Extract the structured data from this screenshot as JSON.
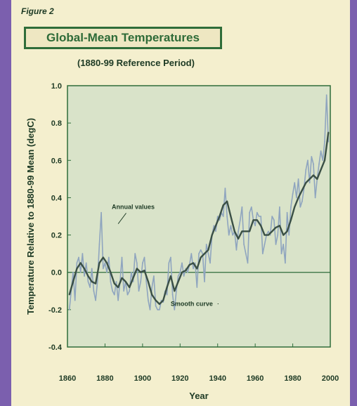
{
  "figure_label": "Figure 2",
  "chart_data": {
    "type": "line",
    "title": "Global-Mean Temperatures",
    "subtitle": "(1880-99 Reference Period)",
    "xlabel": "Year",
    "ylabel": "Temperature Relative to 1880-99 Mean (degC)",
    "xlim": [
      1860,
      2000
    ],
    "ylim": [
      -0.4,
      1.0
    ],
    "xticks": [
      1860,
      1880,
      1900,
      1920,
      1940,
      1960,
      1980,
      2000
    ],
    "yticks": [
      -0.4,
      -0.2,
      0.0,
      0.2,
      0.4,
      0.6,
      0.8,
      1.0
    ],
    "ytick_labels": [
      "-0.4",
      "-0.2",
      "0.0",
      "0.2",
      "0.4",
      "0.6",
      "0.8",
      "1.0"
    ],
    "grid": false,
    "zero_line": true,
    "annotations": [
      {
        "text": "Annual values",
        "target": "annual",
        "x": 1895,
        "y": 0.34,
        "arrow_to": [
          1887,
          0.26
        ]
      },
      {
        "text": "Smooth curve",
        "target": "smooth",
        "x": 1915,
        "y": -0.18,
        "arrow_to": [
          1940,
          -0.18
        ]
      }
    ],
    "series": [
      {
        "id": "annual",
        "x": [
          1861,
          1862,
          1863,
          1864,
          1865,
          1866,
          1867,
          1868,
          1869,
          1870,
          1871,
          1872,
          1873,
          1874,
          1875,
          1876,
          1877,
          1878,
          1879,
          1880,
          1881,
          1882,
          1883,
          1884,
          1885,
          1886,
          1887,
          1888,
          1889,
          1890,
          1891,
          1892,
          1893,
          1894,
          1895,
          1896,
          1897,
          1898,
          1899,
          1900,
          1901,
          1902,
          1903,
          1904,
          1905,
          1906,
          1907,
          1908,
          1909,
          1910,
          1911,
          1912,
          1913,
          1914,
          1915,
          1916,
          1917,
          1918,
          1919,
          1920,
          1921,
          1922,
          1923,
          1924,
          1925,
          1926,
          1927,
          1928,
          1929,
          1930,
          1931,
          1932,
          1933,
          1934,
          1935,
          1936,
          1937,
          1938,
          1939,
          1940,
          1941,
          1942,
          1943,
          1944,
          1945,
          1946,
          1947,
          1948,
          1949,
          1950,
          1951,
          1952,
          1953,
          1954,
          1955,
          1956,
          1957,
          1958,
          1959,
          1960,
          1961,
          1962,
          1963,
          1964,
          1965,
          1966,
          1967,
          1968,
          1969,
          1970,
          1971,
          1972,
          1973,
          1974,
          1975,
          1976,
          1977,
          1978,
          1979,
          1980,
          1981,
          1982,
          1983,
          1984,
          1985,
          1986,
          1987,
          1988,
          1989,
          1990,
          1991,
          1992,
          1993,
          1994,
          1995,
          1996,
          1997,
          1998,
          1999
        ],
        "y": [
          -0.2,
          -0.1,
          0.0,
          -0.15,
          0.05,
          0.08,
          0.0,
          0.1,
          -0.02,
          0.05,
          -0.05,
          -0.08,
          0.02,
          -0.1,
          -0.15,
          -0.05,
          0.15,
          0.32,
          0.02,
          0.05,
          0.0,
          0.08,
          -0.05,
          -0.1,
          -0.12,
          -0.05,
          -0.15,
          -0.05,
          0.08,
          -0.1,
          -0.05,
          -0.12,
          -0.1,
          0.0,
          -0.05,
          0.1,
          0.05,
          -0.1,
          -0.05,
          0.05,
          0.08,
          -0.05,
          -0.15,
          -0.2,
          -0.08,
          -0.02,
          -0.18,
          -0.2,
          -0.2,
          -0.15,
          -0.16,
          -0.1,
          -0.12,
          0.05,
          0.08,
          -0.12,
          -0.2,
          -0.1,
          -0.02,
          0.0,
          0.05,
          -0.02,
          0.02,
          0.0,
          0.04,
          0.1,
          0.02,
          0.05,
          -0.08,
          0.1,
          0.12,
          0.1,
          -0.05,
          0.15,
          0.1,
          0.05,
          0.2,
          0.25,
          0.22,
          0.3,
          0.28,
          0.32,
          0.3,
          0.45,
          0.3,
          0.2,
          0.25,
          0.2,
          0.22,
          0.12,
          0.22,
          0.28,
          0.35,
          0.15,
          0.1,
          0.05,
          0.32,
          0.35,
          0.28,
          0.25,
          0.32,
          0.3,
          0.3,
          0.1,
          0.15,
          0.2,
          0.22,
          0.2,
          0.3,
          0.28,
          0.15,
          0.2,
          0.35,
          0.1,
          0.15,
          0.05,
          0.32,
          0.2,
          0.35,
          0.42,
          0.48,
          0.4,
          0.5,
          0.35,
          0.38,
          0.45,
          0.55,
          0.6,
          0.48,
          0.62,
          0.58,
          0.4,
          0.5,
          0.58,
          0.65,
          0.6,
          0.7,
          0.95,
          0.7
        ]
      },
      {
        "id": "smooth",
        "x": [
          1861,
          1863,
          1865,
          1867,
          1869,
          1871,
          1873,
          1875,
          1877,
          1879,
          1881,
          1883,
          1885,
          1887,
          1889,
          1891,
          1893,
          1895,
          1897,
          1899,
          1901,
          1903,
          1905,
          1907,
          1909,
          1911,
          1913,
          1915,
          1917,
          1919,
          1921,
          1923,
          1925,
          1927,
          1929,
          1931,
          1933,
          1935,
          1937,
          1939,
          1941,
          1943,
          1945,
          1947,
          1949,
          1951,
          1953,
          1955,
          1957,
          1959,
          1961,
          1963,
          1965,
          1967,
          1969,
          1971,
          1973,
          1975,
          1977,
          1979,
          1981,
          1983,
          1985,
          1987,
          1989,
          1991,
          1993,
          1995,
          1997,
          1999
        ],
        "y": [
          -0.12,
          -0.05,
          0.02,
          0.05,
          0.02,
          -0.02,
          -0.05,
          -0.06,
          0.05,
          0.08,
          0.05,
          0.0,
          -0.06,
          -0.08,
          -0.03,
          -0.05,
          -0.08,
          -0.03,
          0.02,
          0.0,
          0.01,
          -0.05,
          -0.12,
          -0.15,
          -0.17,
          -0.15,
          -0.08,
          -0.02,
          -0.1,
          -0.05,
          0.0,
          0.01,
          0.04,
          0.05,
          0.02,
          0.08,
          0.1,
          0.12,
          0.2,
          0.25,
          0.3,
          0.36,
          0.38,
          0.3,
          0.22,
          0.18,
          0.22,
          0.22,
          0.22,
          0.28,
          0.28,
          0.25,
          0.2,
          0.2,
          0.22,
          0.24,
          0.25,
          0.2,
          0.22,
          0.28,
          0.35,
          0.4,
          0.44,
          0.48,
          0.5,
          0.52,
          0.5,
          0.55,
          0.6,
          0.75
        ]
      }
    ]
  }
}
